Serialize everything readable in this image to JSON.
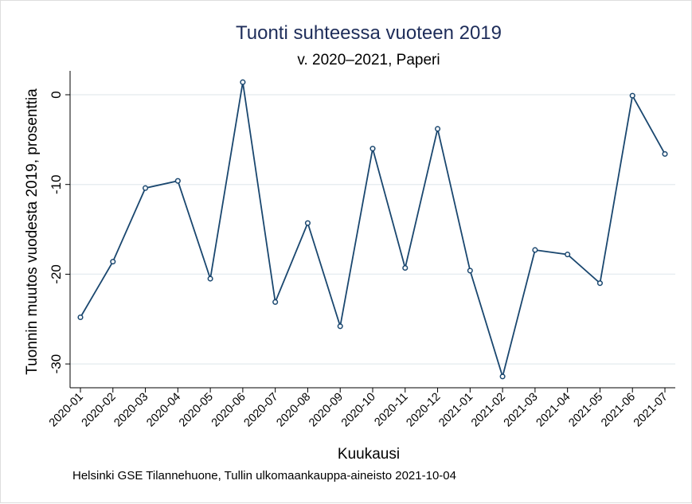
{
  "chart_data": {
    "type": "line",
    "title": "Tuonti suhteessa vuoteen 2019",
    "subtitle": "v. 2020–2021, Paperi",
    "xlabel": "Kuukausi",
    "ylabel": "Tuonnin muutos vuodesta 2019, prosenttia",
    "note": "Helsinki GSE Tilannehuone, Tullin ulkomaankauppa-aineisto 2021-10-04",
    "ylim": [
      -32.5,
      2.7
    ],
    "yticks": [
      0,
      -10,
      -20,
      -30
    ],
    "grid": true,
    "categories": [
      "2020-01",
      "2020-02",
      "2020-03",
      "2020-04",
      "2020-05",
      "2020-06",
      "2020-07",
      "2020-08",
      "2020-09",
      "2020-10",
      "2020-11",
      "2020-12",
      "2021-01",
      "2021-02",
      "2021-03",
      "2021-04",
      "2021-05",
      "2021-06",
      "2021-07"
    ],
    "series": [
      {
        "name": "Paperi",
        "color": "#1a476f",
        "values": [
          -24.8,
          -18.6,
          -10.4,
          -9.6,
          -20.5,
          1.4,
          -23.1,
          -14.3,
          -25.8,
          -6.0,
          -19.3,
          -3.8,
          -19.6,
          -31.4,
          -17.3,
          -17.8,
          -21.0,
          -0.1,
          -6.6
        ]
      }
    ]
  }
}
